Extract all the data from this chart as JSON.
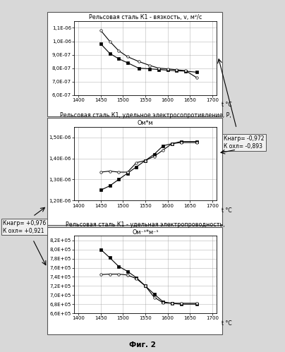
{
  "title1": "Рельсовая сталь К1 - вязкость, v, м²/с",
  "title2": "Рельсовая сталь К1, удельное электросопротивление, P,\nОм*м",
  "title3": "Рельсовая сталь К1 - удельная электропроводность,\nОм⁻¹*м⁻¹",
  "fig_caption": "Фиг. 2",
  "plot1_x_heat": [
    1450,
    1470,
    1490,
    1510,
    1535,
    1560,
    1580,
    1600,
    1620,
    1640,
    1665
  ],
  "plot1_y_heat": [
    9.8e-07,
    9.1e-07,
    8.7e-07,
    8.4e-07,
    8e-07,
    7.95e-07,
    7.9e-07,
    7.85e-07,
    7.8e-07,
    7.78e-07,
    7.7e-07
  ],
  "plot1_x_cool": [
    1450,
    1470,
    1490,
    1510,
    1535,
    1560,
    1580,
    1600,
    1620,
    1640,
    1665
  ],
  "plot1_y_cool": [
    1.08e-06,
    1e-06,
    9.3e-07,
    8.85e-07,
    8.5e-07,
    8.2e-07,
    8e-07,
    7.95e-07,
    7.88e-07,
    7.82e-07,
    7.3e-07
  ],
  "plot1_ylim": [
    6e-07,
    1.15e-06
  ],
  "plot1_yticks": [
    6e-07,
    7e-07,
    8e-07,
    9e-07,
    1e-06,
    1.1e-06
  ],
  "plot1_ytick_labels": [
    "6,0E-07",
    "7,0E-07",
    "8,0E-07",
    "9,0E-07",
    "1,0E-06",
    "1,1E-06"
  ],
  "plot2_x_heat": [
    1450,
    1470,
    1490,
    1510,
    1530,
    1550,
    1570,
    1590,
    1610,
    1630,
    1665
  ],
  "plot2_y_heat": [
    1.25e-06,
    1.27e-06,
    1.3e-06,
    1.33e-06,
    1.36e-06,
    1.39e-06,
    1.42e-06,
    1.46e-06,
    1.47e-06,
    1.48e-06,
    1.48e-06
  ],
  "plot2_x_cool": [
    1450,
    1470,
    1490,
    1510,
    1530,
    1550,
    1570,
    1590,
    1610,
    1630,
    1665
  ],
  "plot2_y_cool": [
    1.335e-06,
    1.34e-06,
    1.335e-06,
    1.335e-06,
    1.38e-06,
    1.39e-06,
    1.41e-06,
    1.44e-06,
    1.47e-06,
    1.475e-06,
    1.475e-06
  ],
  "plot2_ylim": [
    1.2e-06,
    1.55e-06
  ],
  "plot2_yticks": [
    1.2e-06,
    1.3e-06,
    1.4e-06,
    1.5e-06
  ],
  "plot2_ytick_labels": [
    "1,20E-06",
    "1,30E-06",
    "1,40E-06",
    "1,50E-06"
  ],
  "plot3_x_heat": [
    1450,
    1470,
    1490,
    1510,
    1530,
    1550,
    1570,
    1590,
    1610,
    1630,
    1665
  ],
  "plot3_y_heat": [
    800000.0,
    782000.0,
    763000.0,
    752000.0,
    738000.0,
    720000.0,
    702000.0,
    685000.0,
    682000.0,
    680000.0,
    680000.0
  ],
  "plot3_x_cool": [
    1450,
    1470,
    1490,
    1510,
    1530,
    1550,
    1570,
    1590,
    1610,
    1630,
    1665
  ],
  "plot3_y_cool": [
    745000.0,
    746000.0,
    746000.0,
    744000.0,
    736000.0,
    720000.0,
    695000.0,
    683000.0,
    682000.0,
    682000.0,
    682000.0
  ],
  "plot3_ylim": [
    660000.0,
    830000.0
  ],
  "plot3_yticks": [
    660000.0,
    680000.0,
    700000.0,
    720000.0,
    740000.0,
    760000.0,
    780000.0,
    800000.0,
    820000.0
  ],
  "plot3_ytick_labels": [
    "6,6E+05",
    "6,8E+05",
    "7,0E+05",
    "7,2E+05",
    "7,4E+05",
    "7,6E+05",
    "7,8E+05",
    "8,0E+05",
    "8,2E+05"
  ],
  "xlim": [
    1390,
    1710
  ],
  "xticks": [
    1400,
    1450,
    1500,
    1550,
    1600,
    1650,
    1700
  ],
  "xtick_labels": [
    "1400",
    "1450",
    "1500",
    "1550",
    "1600",
    "1650",
    "1700"
  ],
  "bg_color": "#d8d8d8",
  "plot_bg": "#ffffff",
  "grid_color": "#999999"
}
